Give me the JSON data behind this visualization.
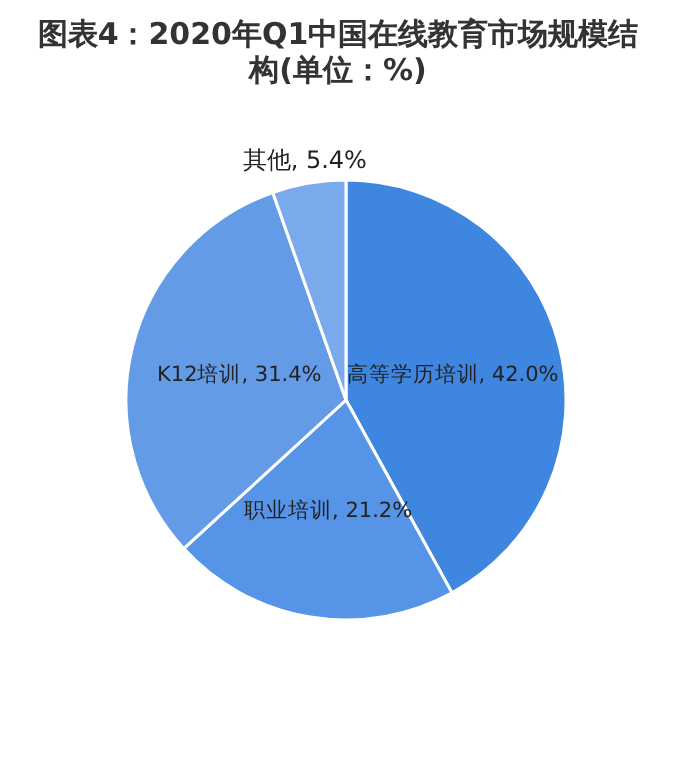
{
  "chart_data": {
    "type": "pie",
    "title": "图表4：2020年Q1中国在线教育市场规模结构(单位：%)",
    "categories": [
      "高等学历培训",
      "职业培训",
      "K12培训",
      "其他"
    ],
    "values": [
      42.0,
      21.2,
      31.4,
      5.4
    ],
    "value_labels": [
      "42.0%",
      "21.2%",
      "31.4%",
      "5.4%"
    ],
    "colors": [
      "#3f86e0",
      "#5594e6",
      "#639be6",
      "#7aaaec"
    ],
    "legend": false
  }
}
